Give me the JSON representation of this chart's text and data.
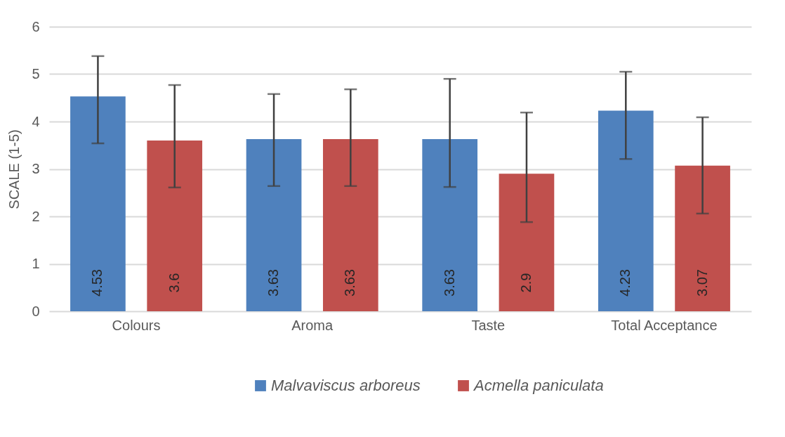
{
  "chart_data": {
    "type": "bar",
    "ylabel": "SCALE  (1-5)",
    "categories": [
      "Colours",
      "Aroma",
      "Taste",
      "Total Acceptance"
    ],
    "series": [
      {
        "name": "Malvaviscus arboreus",
        "color": "#4f81bd",
        "values": [
          4.53,
          3.63,
          3.63,
          4.23
        ],
        "errors": [
          [
            3.54,
            5.38
          ],
          [
            2.64,
            4.58
          ],
          [
            2.62,
            4.9
          ],
          [
            3.21,
            5.05
          ]
        ]
      },
      {
        "name": "Acmella paniculata",
        "color": "#c0504d",
        "values": [
          3.6,
          3.63,
          2.9,
          3.07
        ],
        "errors": [
          [
            2.61,
            4.77
          ],
          [
            2.64,
            4.68
          ],
          [
            1.88,
            4.19
          ],
          [
            2.06,
            4.09
          ]
        ]
      }
    ],
    "ylim": [
      0,
      6
    ],
    "yticks": [
      0,
      1,
      2,
      3,
      4,
      5,
      6
    ],
    "grid": "y",
    "legend": "bottom",
    "data_labels": true
  }
}
